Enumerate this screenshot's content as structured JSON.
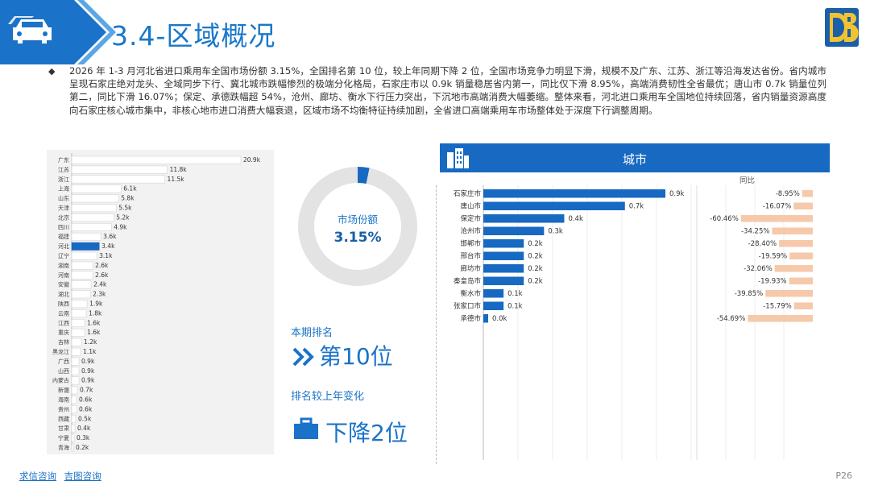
{
  "header": {
    "title": "3.4-区域概况",
    "brand_color": "#1877c9"
  },
  "intro": {
    "text": "2026 年 1-3 月河北省进口乘用车全国市场份额 3.15%，全国排名第 10 位，较上年同期下降 2 位，全国市场竞争力明显下滑，规模不及广东、江苏、浙江等沿海发达省份。省内城市呈现石家庄绝对龙头、全域同步下行、冀北城市跌幅惨烈的极端分化格局，石家庄市以 0.9k 销量稳居省内第一，同比仅下滑 8.95%，高端消费韧性全省最优；唐山市 0.7k 销量位列第二，同比下滑 16.07%；保定、承德跌幅超 54%，沧州、廊坊、衡水下行压力突出，下沉地市高端消费大幅萎缩。整体来看，河北进口乘用车全国地位持续回落，省内销量资源高度向石家庄核心城市集中，非核心地市进口消费大幅衰退，区域市场不均衡特征持续加剧，全省进口高端乘用车市场整体处于深度下行调整周期。"
  },
  "share": {
    "label": "市场份额",
    "value_text": "3.15%",
    "value": 3.15
  },
  "rank": {
    "label": "本期排名",
    "value": "第10位"
  },
  "rank_change": {
    "label": "排名较上年变化",
    "value": "下降2位"
  },
  "city_header": {
    "title": "城市",
    "yoy_title": "同比"
  },
  "footer": {
    "link1": "求信咨询",
    "link2": "吉图咨询",
    "page": "P26"
  },
  "chart_data": [
    {
      "type": "bar",
      "orientation": "horizontal",
      "categories": [
        "广东",
        "江苏",
        "浙江",
        "上海",
        "山东",
        "天津",
        "北京",
        "四川",
        "福建",
        "河北",
        "辽宁",
        "湖南",
        "河南",
        "安徽",
        "湖北",
        "陕西",
        "云南",
        "江西",
        "重庆",
        "吉林",
        "黑龙江",
        "广西",
        "山西",
        "内蒙古",
        "新疆",
        "海南",
        "贵州",
        "西藏",
        "甘肃",
        "宁夏",
        "青海"
      ],
      "values": [
        20.9,
        11.8,
        11.5,
        6.1,
        5.8,
        5.5,
        5.2,
        4.9,
        3.6,
        3.4,
        3.1,
        2.6,
        2.6,
        2.4,
        2.3,
        1.9,
        1.8,
        1.6,
        1.6,
        1.2,
        1.1,
        0.9,
        0.9,
        0.9,
        0.7,
        0.6,
        0.6,
        0.5,
        0.4,
        0.3,
        0.2
      ],
      "labels": [
        "20.9k",
        "11.8k",
        "11.5k",
        "6.1k",
        "5.8k",
        "5.5k",
        "5.2k",
        "4.9k",
        "3.6k",
        "3.4k",
        "3.1k",
        "2.6k",
        "2.6k",
        "2.4k",
        "2.3k",
        "1.9k",
        "1.8k",
        "1.6k",
        "1.6k",
        "1.2k",
        "1.1k",
        "0.9k",
        "0.9k",
        "0.9k",
        "0.7k",
        "0.6k",
        "0.6k",
        "0.5k",
        "0.4k",
        "0.3k",
        "0.2k"
      ],
      "highlight": "河北",
      "color": "#ffffff",
      "highlight_color": "#1769c2"
    },
    {
      "type": "bar",
      "orientation": "horizontal",
      "categories": [
        "石家庄市",
        "唐山市",
        "保定市",
        "沧州市",
        "邯郸市",
        "邢台市",
        "廊坊市",
        "秦皇岛市",
        "衡水市",
        "张家口市",
        "承德市"
      ],
      "values": [
        0.9,
        0.7,
        0.4,
        0.3,
        0.2,
        0.2,
        0.2,
        0.2,
        0.1,
        0.1,
        0.0
      ],
      "labels": [
        "0.9k",
        "0.7k",
        "0.4k",
        "0.3k",
        "0.2k",
        "0.2k",
        "0.2k",
        "0.2k",
        "0.1k",
        "0.1k",
        "0.0k"
      ],
      "color": "#1769c2"
    },
    {
      "type": "bar",
      "orientation": "horizontal",
      "title": "同比",
      "categories": [
        "石家庄市",
        "唐山市",
        "保定市",
        "沧州市",
        "邯郸市",
        "邢台市",
        "廊坊市",
        "秦皇岛市",
        "衡水市",
        "张家口市",
        "承德市"
      ],
      "values": [
        -8.95,
        -16.07,
        -60.46,
        -34.25,
        -28.4,
        -19.59,
        -32.06,
        -19.93,
        -39.85,
        -15.79,
        -54.69
      ],
      "labels": [
        "-8.95%",
        "-16.07%",
        "-60.46%",
        "-34.25%",
        "-28.40%",
        "-19.59%",
        "-32.06%",
        "-19.93%",
        "-39.85%",
        "-15.79%",
        "-54.69%"
      ],
      "color": "#f6c9aa"
    }
  ]
}
